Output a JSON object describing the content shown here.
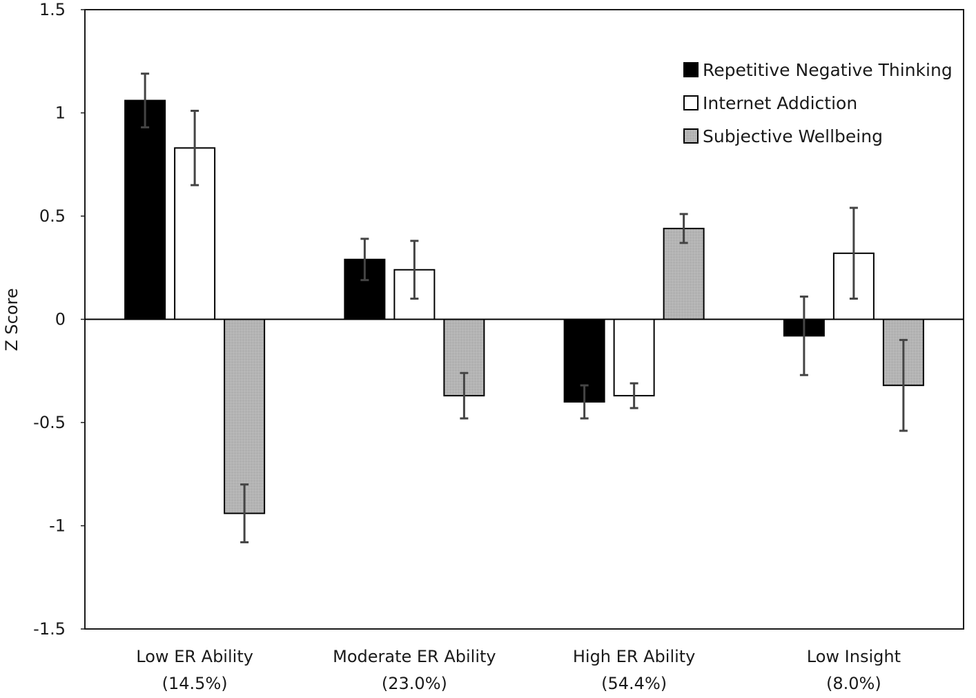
{
  "chart_data": {
    "type": "bar",
    "title": "",
    "xlabel": "",
    "ylabel": "Z Score",
    "ylim": [
      -1.5,
      1.5
    ],
    "yticks": [
      1.5,
      1,
      0.5,
      0,
      -0.5,
      -1,
      -1.5
    ],
    "ytick_labels": [
      "1.5",
      "1",
      "0.5",
      "0",
      "-0.5",
      "-1",
      "-1.5"
    ],
    "grid": false,
    "legend_position": "top-right",
    "categories": [
      {
        "line1": "Low ER Ability",
        "line2": "(14.5%)"
      },
      {
        "line1": "Moderate ER Ability",
        "line2": "(23.0%)"
      },
      {
        "line1": "High ER Ability",
        "line2": "(54.4%)"
      },
      {
        "line1": "Low Insight",
        "line2": "(8.0%)"
      }
    ],
    "series": [
      {
        "name": "Repetitive Negative Thinking",
        "color": "#000000",
        "values": [
          1.06,
          0.29,
          -0.4,
          -0.08
        ],
        "errors": [
          0.13,
          0.1,
          0.08,
          0.19
        ]
      },
      {
        "name": "Internet Addiction",
        "color": "#ffffff",
        "values": [
          0.83,
          0.24,
          -0.37,
          0.32
        ],
        "errors": [
          0.18,
          0.14,
          0.06,
          0.22
        ]
      },
      {
        "name": "Subjective Wellbeing",
        "color": "#b4b4b4",
        "values": [
          -0.94,
          -0.37,
          0.44,
          -0.32
        ],
        "errors": [
          0.14,
          0.11,
          0.07,
          0.22
        ]
      }
    ]
  }
}
